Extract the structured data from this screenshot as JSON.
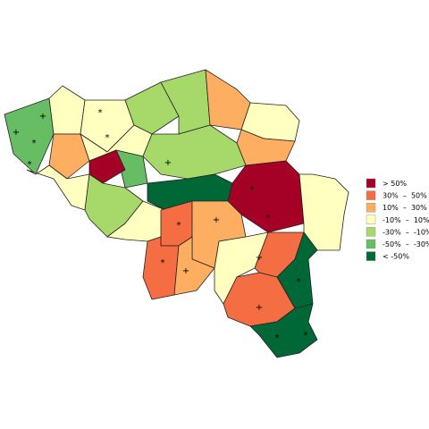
{
  "legend": {
    "items": [
      {
        "label": "> 50%",
        "color": "#a50026"
      },
      {
        "label": "30%  –  50%",
        "color": "#f46d43"
      },
      {
        "label": "10%  –  30%",
        "color": "#fdae61"
      },
      {
        "label": "-10%  –  10%",
        "color": "#ffffbf"
      },
      {
        "label": "-30%  –  -10%",
        "color": "#a6d96a"
      },
      {
        "label": "-50%  –  -30%",
        "color": "#66bd63"
      },
      {
        "label": "< -50%",
        "color": "#006837"
      }
    ]
  }
}
